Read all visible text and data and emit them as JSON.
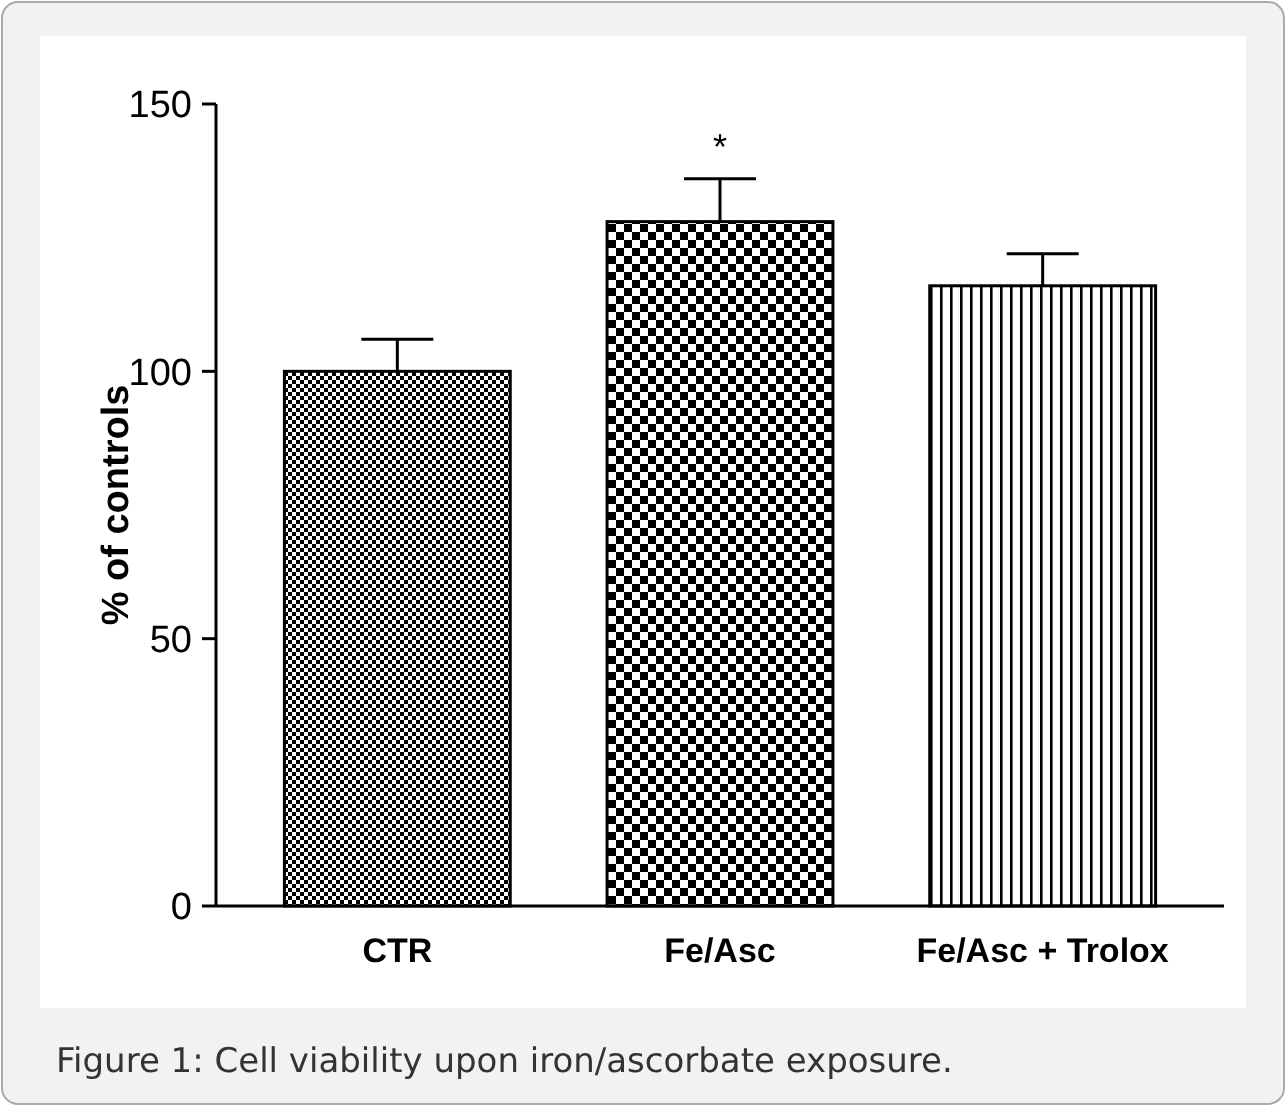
{
  "chart_data": {
    "type": "bar",
    "ylabel": "% of controls",
    "categories": [
      "CTR",
      "Fe/Asc",
      "Fe/Asc + Trolox"
    ],
    "values": [
      100,
      128,
      116
    ],
    "errors": [
      6,
      8,
      6
    ],
    "colors": [
      "#000000",
      "#000000",
      "#000000"
    ],
    "ylim": [
      0,
      150
    ],
    "yticks": [
      0,
      50,
      100,
      150
    ],
    "grid": false,
    "annotations": [
      "*",
      "Figure 1: Cell viability upon iron/ascorbate exposure."
    ]
  }
}
